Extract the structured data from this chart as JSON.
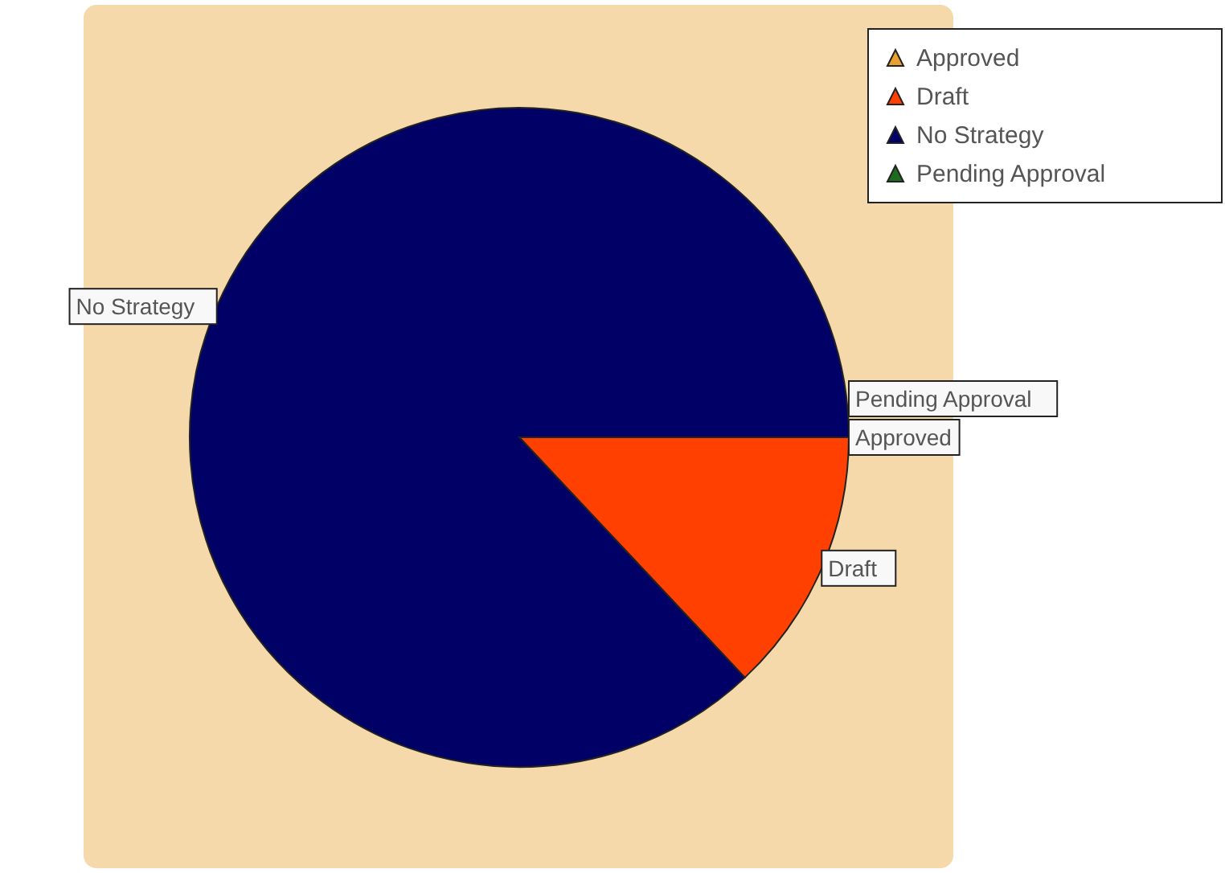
{
  "chart_data": {
    "type": "pie",
    "categories": [
      "Approved",
      "Draft",
      "No Strategy",
      "Pending Approval"
    ],
    "values": [
      0,
      13,
      87,
      0
    ],
    "colors": [
      "#e8a030",
      "#ff4000",
      "#000066",
      "#1f6b1f"
    ],
    "legend": "top right"
  }
}
